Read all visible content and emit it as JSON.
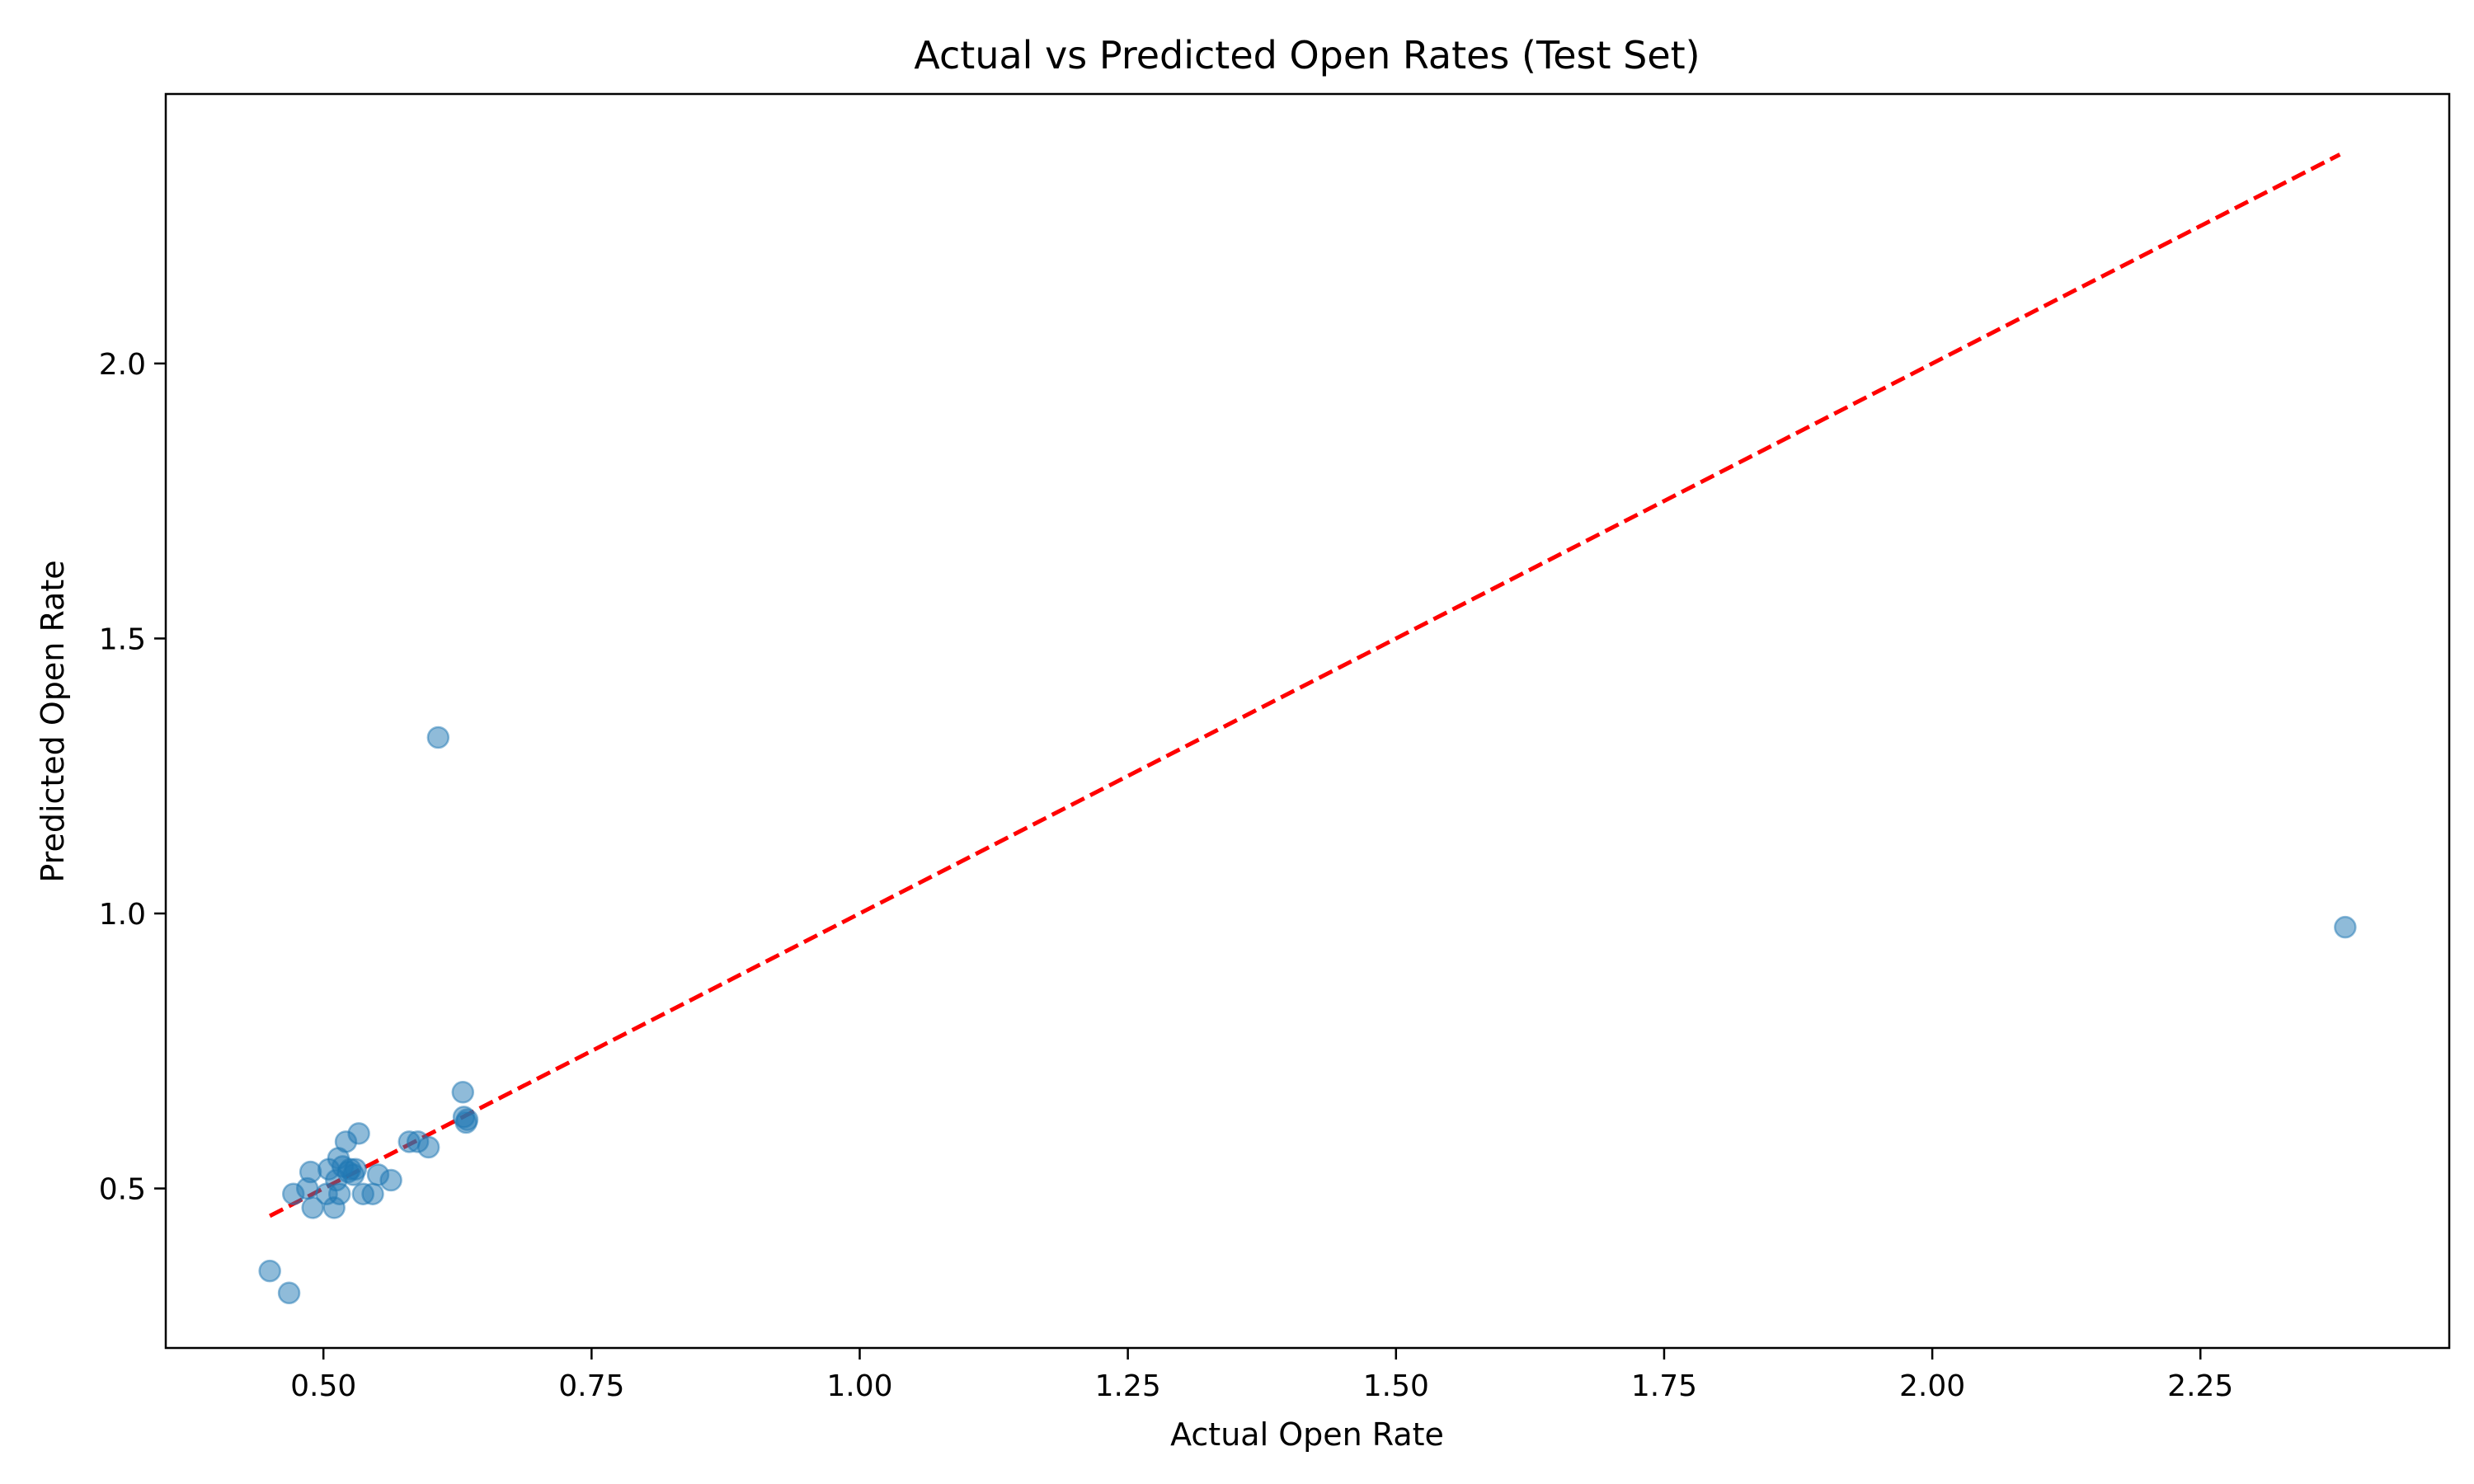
{
  "chart_data": {
    "type": "scatter",
    "title": "Actual vs Predicted Open Rates (Test Set)",
    "xlabel": "Actual Open Rate",
    "ylabel": "Predicted Open Rate",
    "xlim": [
      0.353,
      2.482
    ],
    "ylim": [
      0.21,
      2.49
    ],
    "xticks": [
      {
        "value": 0.5,
        "label": "0.50"
      },
      {
        "value": 0.75,
        "label": "0.75"
      },
      {
        "value": 1.0,
        "label": "1.00"
      },
      {
        "value": 1.25,
        "label": "1.25"
      },
      {
        "value": 1.5,
        "label": "1.50"
      },
      {
        "value": 1.75,
        "label": "1.75"
      },
      {
        "value": 2.0,
        "label": "2.00"
      },
      {
        "value": 2.25,
        "label": "2.25"
      }
    ],
    "yticks": [
      {
        "value": 0.5,
        "label": "0.5"
      },
      {
        "value": 1.0,
        "label": "1.0"
      },
      {
        "value": 1.5,
        "label": "1.5"
      },
      {
        "value": 2.0,
        "label": "2.0"
      }
    ],
    "grid": false,
    "point_color": "#1f77b4",
    "point_alpha": 0.5,
    "reference_line": {
      "x": [
        0.45,
        2.38
      ],
      "y": [
        0.45,
        2.38
      ],
      "color": "#ff0000",
      "style": "dashed"
    },
    "points": [
      {
        "x": 0.45,
        "y": 0.35
      },
      {
        "x": 0.468,
        "y": 0.31
      },
      {
        "x": 0.472,
        "y": 0.49
      },
      {
        "x": 0.485,
        "y": 0.5
      },
      {
        "x": 0.488,
        "y": 0.53
      },
      {
        "x": 0.49,
        "y": 0.465
      },
      {
        "x": 0.503,
        "y": 0.49
      },
      {
        "x": 0.505,
        "y": 0.535
      },
      {
        "x": 0.51,
        "y": 0.465
      },
      {
        "x": 0.512,
        "y": 0.515
      },
      {
        "x": 0.514,
        "y": 0.555
      },
      {
        "x": 0.515,
        "y": 0.49
      },
      {
        "x": 0.518,
        "y": 0.54
      },
      {
        "x": 0.521,
        "y": 0.585
      },
      {
        "x": 0.523,
        "y": 0.53
      },
      {
        "x": 0.525,
        "y": 0.535
      },
      {
        "x": 0.528,
        "y": 0.525
      },
      {
        "x": 0.53,
        "y": 0.535
      },
      {
        "x": 0.533,
        "y": 0.6
      },
      {
        "x": 0.537,
        "y": 0.49
      },
      {
        "x": 0.546,
        "y": 0.49
      },
      {
        "x": 0.551,
        "y": 0.525
      },
      {
        "x": 0.563,
        "y": 0.515
      },
      {
        "x": 0.58,
        "y": 0.585
      },
      {
        "x": 0.588,
        "y": 0.585
      },
      {
        "x": 0.598,
        "y": 0.575
      },
      {
        "x": 0.607,
        "y": 1.32
      },
      {
        "x": 0.63,
        "y": 0.675
      },
      {
        "x": 0.631,
        "y": 0.63
      },
      {
        "x": 0.633,
        "y": 0.62
      },
      {
        "x": 0.634,
        "y": 0.625
      },
      {
        "x": 2.385,
        "y": 0.975
      }
    ]
  }
}
